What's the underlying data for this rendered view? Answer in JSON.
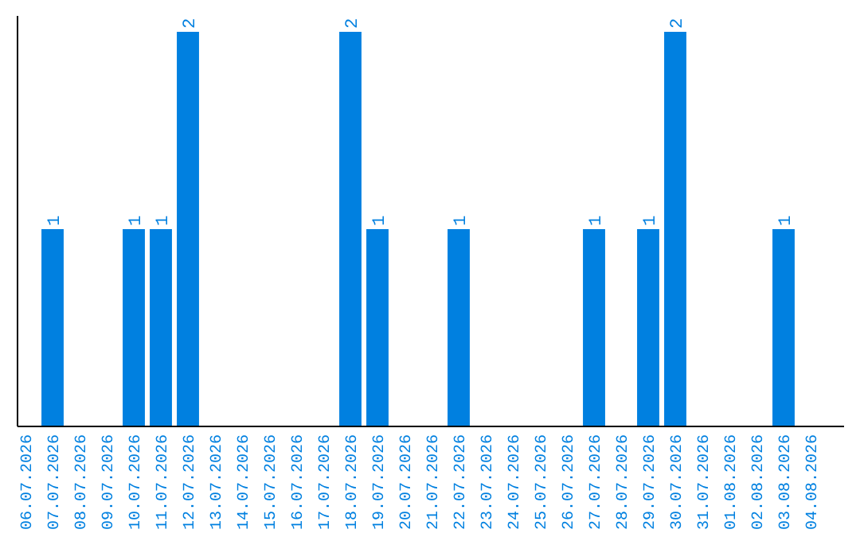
{
  "chart_data": {
    "type": "bar",
    "categories": [
      "06.07.2026",
      "07.07.2026",
      "08.07.2026",
      "09.07.2026",
      "10.07.2026",
      "11.07.2026",
      "12.07.2026",
      "13.07.2026",
      "14.07.2026",
      "15.07.2026",
      "16.07.2026",
      "17.07.2026",
      "18.07.2026",
      "19.07.2026",
      "20.07.2026",
      "21.07.2026",
      "22.07.2026",
      "23.07.2026",
      "24.07.2026",
      "25.07.2026",
      "26.07.2026",
      "27.07.2026",
      "28.07.2026",
      "29.07.2026",
      "30.07.2026",
      "31.07.2026",
      "01.08.2026",
      "02.08.2026",
      "03.08.2026",
      "04.08.2026"
    ],
    "values": [
      0,
      1,
      0,
      0,
      1,
      1,
      2,
      0,
      0,
      0,
      0,
      0,
      2,
      1,
      0,
      0,
      1,
      0,
      0,
      0,
      0,
      1,
      0,
      1,
      2,
      0,
      0,
      0,
      1,
      0
    ],
    "value_labels": [
      null,
      "1",
      null,
      null,
      "1",
      "1",
      "2",
      null,
      null,
      null,
      null,
      null,
      "2",
      "1",
      null,
      null,
      "1",
      null,
      null,
      null,
      null,
      "1",
      null,
      "1",
      "2",
      null,
      null,
      null,
      "1",
      null
    ],
    "color": "#0080e0",
    "ylim": [
      0,
      2
    ],
    "tick_labels": "x"
  }
}
